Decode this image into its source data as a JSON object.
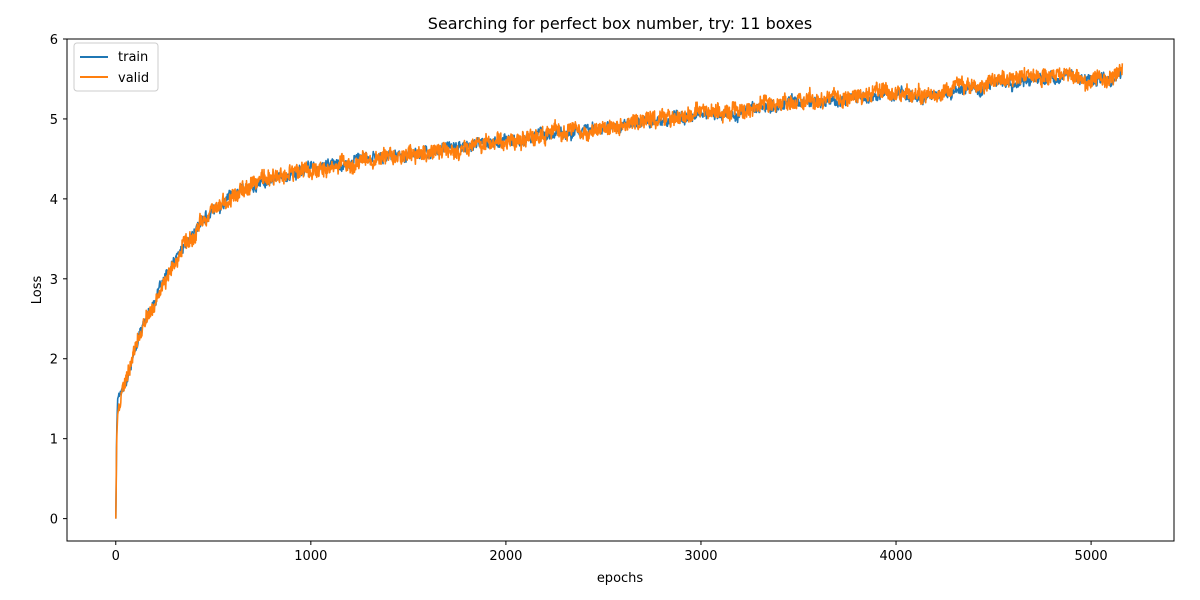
{
  "chart_data": {
    "type": "line",
    "title": "Searching for perfect box number, try: 11 boxes",
    "xlabel": "epochs",
    "ylabel": "Loss",
    "xlim": [
      -250,
      5425
    ],
    "ylim": [
      -0.28,
      6.0
    ],
    "xticks": [
      0,
      1000,
      2000,
      3000,
      4000,
      5000
    ],
    "yticks": [
      0,
      1,
      2,
      3,
      4,
      5,
      6
    ],
    "grid": false,
    "legend_position": "top-left",
    "series": [
      {
        "name": "train",
        "color": "#1f77b4",
        "x": [
          0,
          5,
          10,
          20,
          30,
          50,
          75,
          100,
          150,
          200,
          250,
          300,
          350,
          400,
          450,
          500,
          550,
          600,
          650,
          700,
          800,
          900,
          1000,
          1100,
          1200,
          1300,
          1400,
          1500,
          1600,
          1700,
          1800,
          1900,
          2000,
          2100,
          2200,
          2300,
          2400,
          2500,
          2600,
          2700,
          2800,
          2900,
          3000,
          3100,
          3200,
          3300,
          3400,
          3500,
          3600,
          3700,
          3800,
          3900,
          4000,
          4100,
          4200,
          4300,
          4400,
          4500,
          4600,
          4700,
          4800,
          4900,
          5000,
          5100,
          5160
        ],
        "y": [
          0.0,
          1.1,
          1.5,
          1.58,
          1.62,
          1.72,
          1.92,
          2.13,
          2.48,
          2.75,
          2.97,
          3.2,
          3.4,
          3.58,
          3.72,
          3.86,
          3.96,
          4.05,
          4.12,
          4.17,
          4.25,
          4.32,
          4.38,
          4.42,
          4.46,
          4.5,
          4.53,
          4.56,
          4.6,
          4.63,
          4.66,
          4.7,
          4.73,
          4.77,
          4.81,
          4.84,
          4.87,
          4.9,
          4.93,
          4.96,
          4.99,
          5.02,
          5.05,
          5.07,
          5.1,
          5.13,
          5.16,
          5.19,
          5.22,
          5.25,
          5.28,
          5.3,
          5.32,
          5.28,
          5.3,
          5.36,
          5.4,
          5.43,
          5.47,
          5.5,
          5.52,
          5.5,
          5.45,
          5.5,
          5.55
        ]
      },
      {
        "name": "valid",
        "color": "#ff7f0e",
        "x": [
          0,
          5,
          10,
          20,
          30,
          50,
          75,
          100,
          150,
          200,
          250,
          300,
          350,
          400,
          450,
          500,
          550,
          600,
          650,
          700,
          800,
          900,
          1000,
          1100,
          1200,
          1300,
          1400,
          1500,
          1600,
          1700,
          1800,
          1900,
          2000,
          2100,
          2200,
          2300,
          2400,
          2500,
          2600,
          2700,
          2800,
          2900,
          3000,
          3100,
          3200,
          3300,
          3400,
          3500,
          3600,
          3700,
          3800,
          3900,
          4000,
          4100,
          4200,
          4300,
          4400,
          4500,
          4600,
          4700,
          4800,
          4900,
          5000,
          5100,
          5160
        ],
        "y": [
          0.0,
          1.0,
          1.3,
          1.48,
          1.58,
          1.7,
          1.9,
          2.12,
          2.46,
          2.74,
          2.96,
          3.18,
          3.38,
          3.55,
          3.7,
          3.85,
          3.95,
          4.05,
          4.12,
          4.17,
          4.26,
          4.32,
          4.37,
          4.41,
          4.45,
          4.48,
          4.51,
          4.55,
          4.59,
          4.62,
          4.65,
          4.69,
          4.72,
          4.76,
          4.8,
          4.83,
          4.86,
          4.92,
          4.95,
          4.97,
          4.99,
          5.01,
          5.1,
          5.09,
          5.11,
          5.14,
          5.18,
          5.22,
          5.24,
          5.27,
          5.3,
          5.33,
          5.33,
          5.29,
          5.32,
          5.38,
          5.43,
          5.46,
          5.5,
          5.54,
          5.55,
          5.52,
          5.47,
          5.52,
          5.6
        ]
      }
    ]
  }
}
